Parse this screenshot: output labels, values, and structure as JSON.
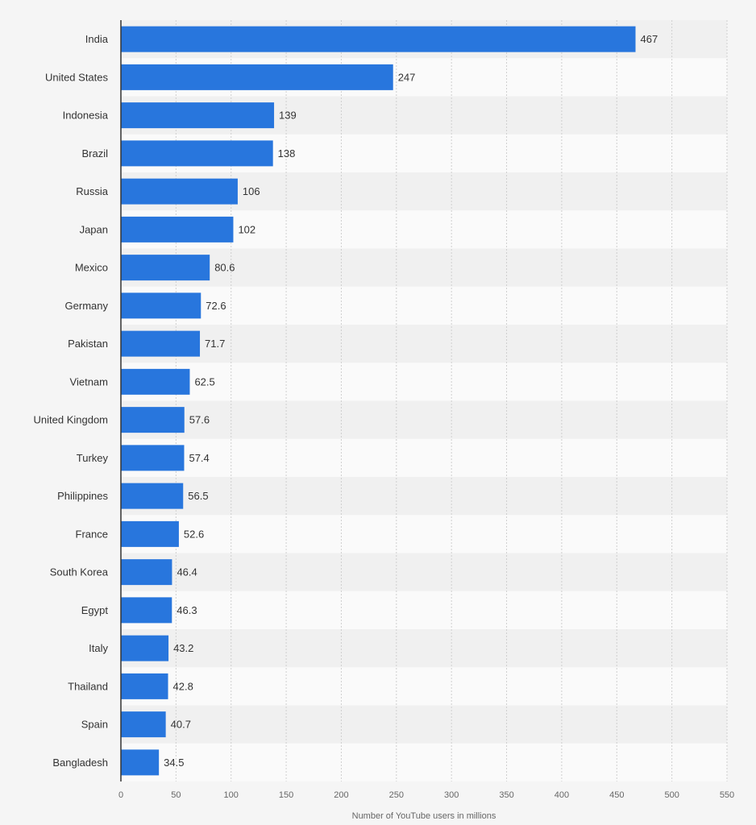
{
  "chart_data": {
    "type": "bar",
    "orientation": "horizontal",
    "title": "",
    "xlabel": "Number of YouTube users in millions",
    "ylabel": "",
    "xlim": [
      0,
      550
    ],
    "x_ticks": [
      0,
      50,
      100,
      150,
      200,
      250,
      300,
      350,
      400,
      450,
      500,
      550
    ],
    "grid": true,
    "categories": [
      "India",
      "United States",
      "Indonesia",
      "Brazil",
      "Russia",
      "Japan",
      "Mexico",
      "Germany",
      "Pakistan",
      "Vietnam",
      "United Kingdom",
      "Turkey",
      "Philippines",
      "France",
      "South Korea",
      "Egypt",
      "Italy",
      "Thailand",
      "Spain",
      "Bangladesh"
    ],
    "values": [
      467,
      247,
      139,
      138,
      106,
      102,
      80.6,
      72.6,
      71.7,
      62.5,
      57.6,
      57.4,
      56.5,
      52.6,
      46.4,
      46.3,
      43.2,
      42.8,
      40.7,
      34.5
    ],
    "value_labels": [
      "467",
      "247",
      "139",
      "138",
      "106",
      "102",
      "80.6",
      "72.6",
      "71.7",
      "62.5",
      "57.6",
      "57.4",
      "56.5",
      "52.6",
      "46.4",
      "46.3",
      "43.2",
      "42.8",
      "40.7",
      "34.5"
    ],
    "colors": {
      "bar": "#2876dd",
      "band_odd": "#f0f0f0",
      "band_even": "#fafafa",
      "grid": "#cfcfcf",
      "axis": "#333333"
    }
  }
}
